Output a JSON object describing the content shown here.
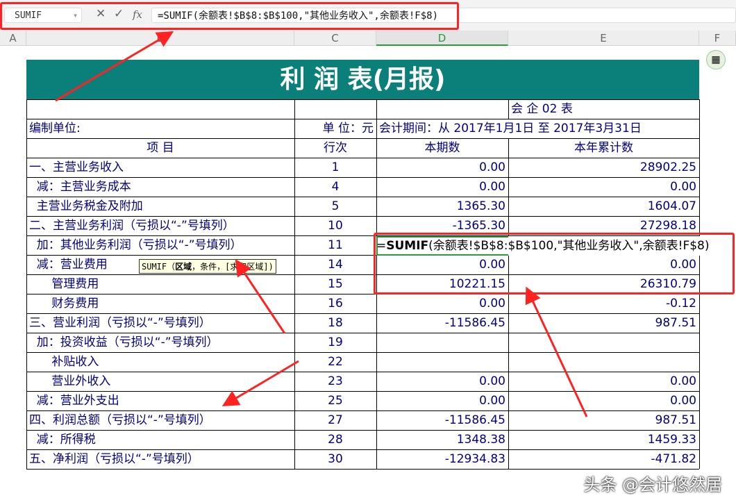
{
  "formula_bar": {
    "name_box": "SUMIF",
    "cancel_icon": "✕",
    "confirm_icon": "✓",
    "fx_label": "fx",
    "formula": "=SUMIF(余额表!$B$8:$B$100,\"其他业务收入\",余额表!F$8)"
  },
  "columns": [
    "A",
    "B",
    "C",
    "D",
    "E",
    "F"
  ],
  "sheet": {
    "title": "利 润 表(月报)",
    "form_no": "会 企 02 表",
    "unit_label": "编制单位:",
    "unit": "单 位：元",
    "period": "会计期间：从   2017年1月1日   至   2017年3月31日",
    "headers": [
      "项    目",
      "行次",
      "本期数",
      "本年累计数"
    ],
    "rows": [
      {
        "item": "一、主营业务收入",
        "line": "1",
        "current": "0.00",
        "ytd": "28902.25"
      },
      {
        "item": "  减：主营业务成本",
        "line": "4",
        "current": "0.00",
        "ytd": "0.00"
      },
      {
        "item": "  主营业务税金及附加",
        "line": "5",
        "current": "1365.30",
        "ytd": "1604.07"
      },
      {
        "item": "二、主营业务利润（亏损以“-”号填列）",
        "line": "10",
        "current": "-1365.30",
        "ytd": "27298.18"
      },
      {
        "item": "  加：其他业务利润（亏损以“-”号填列）",
        "line": "11",
        "current": "",
        "ytd": ""
      },
      {
        "item": "  减：营业费用",
        "line": "14",
        "current": "0.00",
        "ytd": "0.00"
      },
      {
        "item": "      管理费用",
        "line": "15",
        "current": "10221.15",
        "ytd": "26310.79"
      },
      {
        "item": "      财务费用",
        "line": "16",
        "current": "0.00",
        "ytd": "-0.12"
      },
      {
        "item": "三、营业利润（亏损以“-”号填列）",
        "line": "18",
        "current": "-11586.45",
        "ytd": "987.51"
      },
      {
        "item": "  加：投资收益（亏损以“-”号填列）",
        "line": "19",
        "current": "",
        "ytd": ""
      },
      {
        "item": "      补贴收入",
        "line": "22",
        "current": "",
        "ytd": ""
      },
      {
        "item": "      营业外收入",
        "line": "23",
        "current": "0.00",
        "ytd": "0.00"
      },
      {
        "item": "  减：营业外支出",
        "line": "25",
        "current": "0.00",
        "ytd": "0.00"
      },
      {
        "item": "四、利润总额（亏损以“-”号填列）",
        "line": "27",
        "current": "-11586.45",
        "ytd": "987.51"
      },
      {
        "item": "  减：所得税",
        "line": "28",
        "current": "1348.38",
        "ytd": "1459.33"
      },
      {
        "item": "五、净利润（亏损以“-”号填列）",
        "line": "30",
        "current": "-12934.83",
        "ytd": "-471.82"
      }
    ],
    "editing_cell": {
      "prefix": "=",
      "func": "SUMIF",
      "args": "(余额表!$B$8:$B$100,\"其他业务收入\",余额表!F$8)"
    },
    "tooltip": {
      "func": "SUMIF（",
      "bold_arg": "区域",
      "rest": "，条件，[求和区域])"
    }
  },
  "watermark": "头条 @会计悠然居",
  "colors": {
    "title_bg": "#0b7f79",
    "text": "#000080",
    "annotation": "#ff2222"
  }
}
